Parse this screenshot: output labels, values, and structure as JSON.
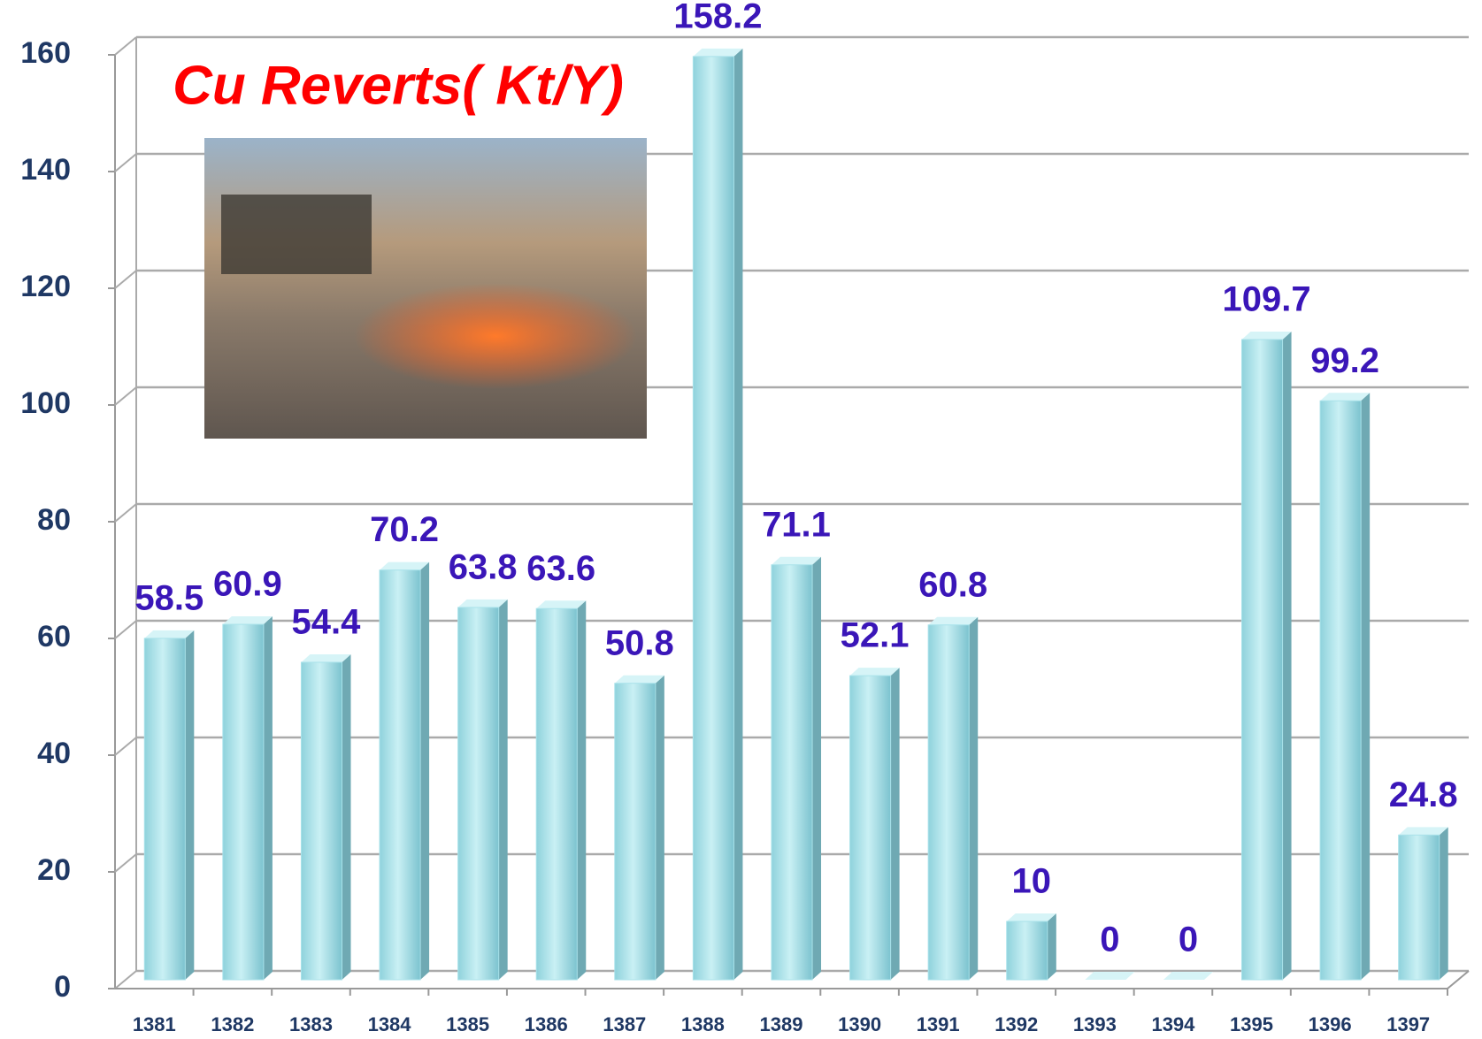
{
  "chart_data": {
    "type": "bar3d",
    "title": "Cu Reverts( Kt/Y)",
    "categories": [
      "1381",
      "1382",
      "1383",
      "1384",
      "1385",
      "1386",
      "1387",
      "1388",
      "1389",
      "1390",
      "1391",
      "1392",
      "1393",
      "1394",
      "1395",
      "1396",
      "1397"
    ],
    "values": [
      58.5,
      60.9,
      54.4,
      70.2,
      63.8,
      63.6,
      50.8,
      158.2,
      71.1,
      52.1,
      60.8,
      10,
      0,
      0,
      109.7,
      99.2,
      24.8
    ],
    "color": "#a9e2ea",
    "ylim": [
      0,
      160
    ],
    "yticks": [
      0,
      20,
      40,
      60,
      80,
      100,
      120,
      140,
      160
    ],
    "grid": true
  }
}
